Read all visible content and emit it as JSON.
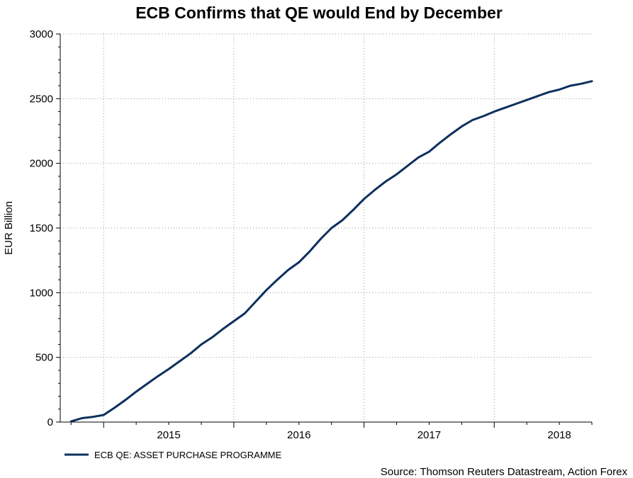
{
  "chart_data": {
    "type": "line",
    "title": "ECB Confirms that QE would End by December",
    "ylabel": "EUR Billion",
    "xlabel": "",
    "ylim": [
      0,
      3000
    ],
    "y_ticks": [
      "0",
      "500",
      "1000",
      "1500",
      "2000",
      "2500",
      "3000"
    ],
    "x_tick_labels": [
      "2015",
      "2016",
      "2017",
      "2018"
    ],
    "xlim": [
      "2014-09",
      "2018-10"
    ],
    "grid": true,
    "legend_position": "bottom-left",
    "source": "Source: Thomson Reuters Datastream, Action Forex",
    "series": [
      {
        "name": "ECB QE: ASSET PURCHASE PROGRAMME",
        "color": "#0d2f5e",
        "x": [
          "2014-10",
          "2014-11",
          "2014-12",
          "2015-01",
          "2015-02",
          "2015-03",
          "2015-04",
          "2015-05",
          "2015-06",
          "2015-07",
          "2015-08",
          "2015-09",
          "2015-10",
          "2015-11",
          "2015-12",
          "2016-01",
          "2016-02",
          "2016-03",
          "2016-04",
          "2016-05",
          "2016-06",
          "2016-07",
          "2016-08",
          "2016-09",
          "2016-10",
          "2016-11",
          "2016-12",
          "2017-01",
          "2017-02",
          "2017-03",
          "2017-04",
          "2017-05",
          "2017-06",
          "2017-07",
          "2017-08",
          "2017-09",
          "2017-10",
          "2017-11",
          "2017-12",
          "2018-01",
          "2018-02",
          "2018-03",
          "2018-04",
          "2018-05",
          "2018-06",
          "2018-07",
          "2018-08",
          "2018-09",
          "2018-10"
        ],
        "values": [
          5,
          30,
          40,
          55,
          110,
          170,
          235,
          295,
          355,
          410,
          470,
          530,
          600,
          655,
          720,
          780,
          840,
          930,
          1020,
          1100,
          1175,
          1235,
          1320,
          1415,
          1500,
          1560,
          1640,
          1725,
          1795,
          1860,
          1915,
          1980,
          2045,
          2090,
          2160,
          2225,
          2285,
          2335,
          2365,
          2400,
          2430,
          2460,
          2490,
          2520,
          2550,
          2570,
          2600,
          2615,
          2635
        ]
      }
    ]
  }
}
